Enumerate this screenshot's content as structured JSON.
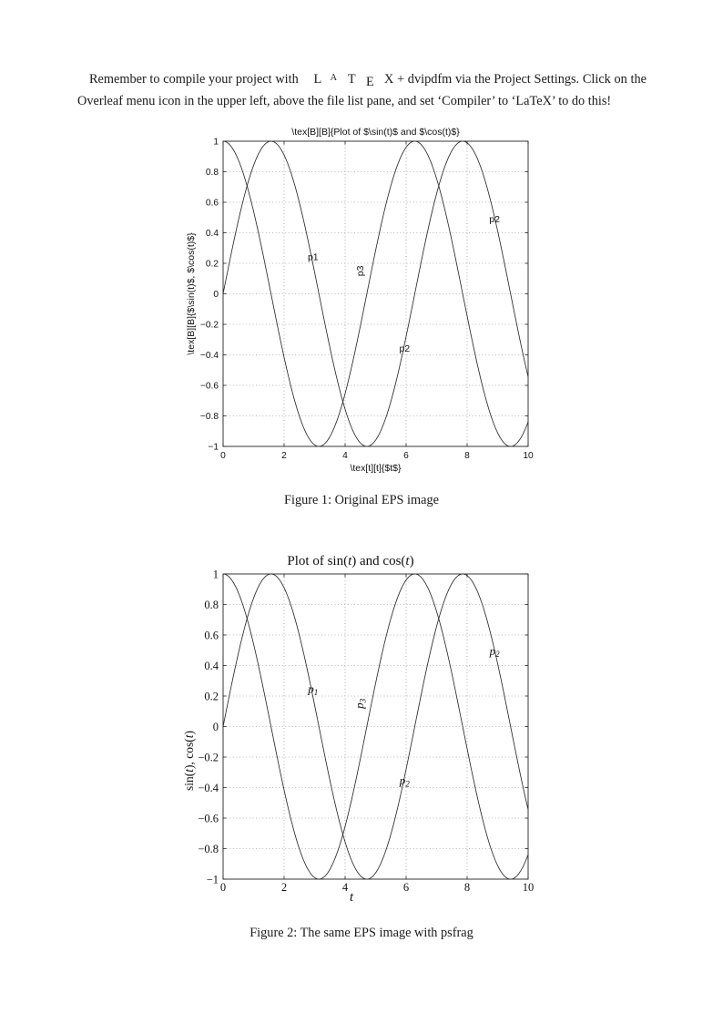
{
  "paragraph": {
    "before": "Remember to compile your project with ",
    "latex_logo": "LaTeX",
    "after": " + dvipdfm via the Project Settings. Click on the Overleaf menu icon in the upper left, above the file list pane, and set ‘Compiler’ to ‘LaTeX’ to do this!"
  },
  "figures": [
    {
      "caption": "Figure 1: Original EPS image"
    },
    {
      "caption": "Figure 2: The same EPS image with psfrag"
    }
  ],
  "chart_data": [
    {
      "id": "chart1",
      "type": "line",
      "title": "\\tex[B][B]{Plot of $\\sin(t)$ and $\\cos(t)$}",
      "xlabel": "\\tex[t][t]{$t$}",
      "ylabel": "\\tex[B][B]{$\\sin(t)$, $\\cos(t)$}",
      "xlim": [
        0,
        10
      ],
      "ylim": [
        -1,
        1
      ],
      "xticks": [
        0,
        2,
        4,
        6,
        8,
        10
      ],
      "yticks": [
        -1,
        -0.8,
        -0.6,
        -0.4,
        -0.2,
        0,
        0.2,
        0.4,
        0.6,
        0.8,
        1
      ],
      "grid": "dotted",
      "legend": "none",
      "series": [
        {
          "name": "sin(t)",
          "fn": "sin"
        },
        {
          "name": "cos(t)",
          "fn": "cos"
        }
      ],
      "annotations": [
        {
          "text": "p1",
          "x": 2.95,
          "y": 0.22,
          "rotate": 0
        },
        {
          "text": "p3",
          "x": 4.6,
          "y": 0.15,
          "rotate": -90
        },
        {
          "text": "p2",
          "x": 5.95,
          "y": -0.38,
          "rotate": 0
        },
        {
          "text": "p2",
          "x": 8.9,
          "y": 0.47,
          "rotate": 0
        }
      ]
    },
    {
      "id": "chart2",
      "type": "line",
      "title_segments": [
        {
          "t": "Plot of sin("
        },
        {
          "t": "t",
          "i": 1
        },
        {
          "t": ") and cos("
        },
        {
          "t": "t",
          "i": 1
        },
        {
          "t": ")"
        }
      ],
      "xlabel_segments": [
        {
          "t": "t",
          "i": 1
        }
      ],
      "ylabel_segments": [
        {
          "t": "sin("
        },
        {
          "t": "t",
          "i": 1
        },
        {
          "t": "), cos("
        },
        {
          "t": "t",
          "i": 1
        },
        {
          "t": ")"
        }
      ],
      "xlim": [
        0,
        10
      ],
      "ylim": [
        -1,
        1
      ],
      "xticks": [
        0,
        2,
        4,
        6,
        8,
        10
      ],
      "yticks": [
        -1,
        -0.8,
        -0.6,
        -0.4,
        -0.2,
        0,
        0.2,
        0.4,
        0.6,
        0.8,
        1
      ],
      "grid": "dotted",
      "legend": "none",
      "series": [
        {
          "name": "sin(t)",
          "fn": "sin"
        },
        {
          "name": "cos(t)",
          "fn": "cos"
        }
      ],
      "annotations": [
        {
          "text": "p",
          "sub": "1",
          "italic": 1,
          "x": 2.95,
          "y": 0.22,
          "rotate": 0
        },
        {
          "text": "p",
          "sub": "3",
          "italic": 1,
          "x": 4.6,
          "y": 0.15,
          "rotate": -90
        },
        {
          "text": "p",
          "sub": "2",
          "italic": 1,
          "x": 5.95,
          "y": -0.38,
          "rotate": 0
        },
        {
          "text": "p",
          "sub": "2",
          "italic": 1,
          "x": 8.9,
          "y": 0.47,
          "rotate": 0
        }
      ]
    }
  ]
}
